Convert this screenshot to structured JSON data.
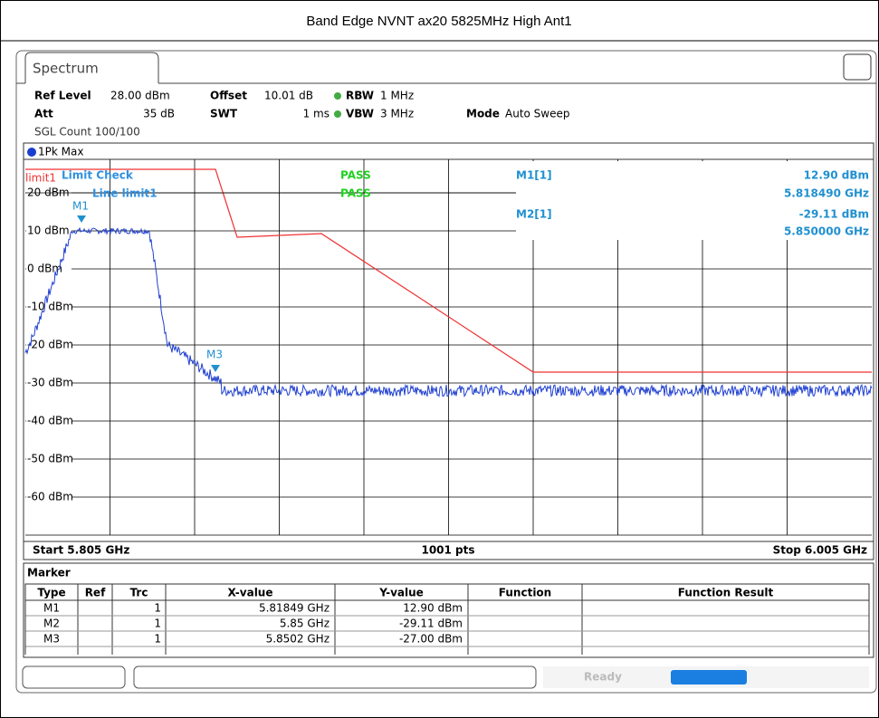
{
  "title": "Band Edge NVNT ax20 5825MHz High Ant1",
  "tab": "Spectrum",
  "settings": {
    "ref_level_label": "Ref Level",
    "ref_level": "28.00 dBm",
    "offset_label": "Offset",
    "offset": "10.01 dB",
    "rbw_label": "RBW",
    "rbw": "1 MHz",
    "att_label": "Att",
    "att": "35 dB",
    "swt_label": "SWT",
    "swt": "1 ms",
    "vbw_label": "VBW",
    "vbw": "3 MHz",
    "mode_label": "Mode",
    "mode": "Auto Sweep",
    "sgl_count": "SGL Count 100/100"
  },
  "trace_label": "1Pk Max",
  "plot": {
    "limit_name": "limit1",
    "limit_check": "Limit Check",
    "line_label": "Line limit1",
    "pass1": "PASS",
    "pass2": "PASS",
    "y_labels": [
      "20 dBm",
      "10 dBm",
      "0 dBm",
      "-10 dBm",
      "-20 dBm",
      "-30 dBm",
      "-40 dBm",
      "-50 dBm",
      "-60 dBm"
    ],
    "marker_labels": [
      "M1",
      "M3"
    ],
    "marker_info": [
      {
        "name": "M1[1]",
        "level": "12.90 dBm",
        "freq": "5.818490 GHz"
      },
      {
        "name": "M2[1]",
        "level": "-29.11 dBm",
        "freq": "5.850000 GHz"
      }
    ]
  },
  "footer": {
    "start": "Start 5.805 GHz",
    "points": "1001 pts",
    "stop": "Stop 6.005 GHz"
  },
  "marker_table": {
    "title": "Marker",
    "columns": [
      "Type",
      "Ref",
      "Trc",
      "X-value",
      "Y-value",
      "Function",
      "Function Result"
    ],
    "rows": [
      {
        "type": "M1",
        "trc": "1",
        "x": "5.81849 GHz",
        "y": "12.90 dBm"
      },
      {
        "type": "M2",
        "trc": "1",
        "x": "5.85 GHz",
        "y": "-29.11 dBm"
      },
      {
        "type": "M3",
        "trc": "1",
        "x": "5.8502 GHz",
        "y": "-27.00 dBm"
      }
    ]
  },
  "status": "Ready"
}
